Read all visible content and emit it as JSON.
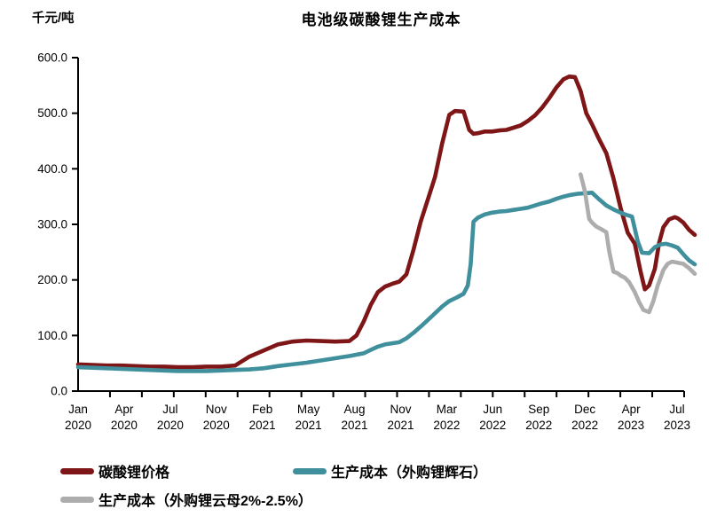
{
  "chart_data": {
    "type": "line",
    "title": "电池级碳酸锂生产成本",
    "ylabel": "千元/吨",
    "xlabel": "",
    "ylim": [
      0,
      600
    ],
    "ytick_step": 100,
    "ytick_labels": [
      "0.0",
      "100.0",
      "200.0",
      "300.0",
      "400.0",
      "500.0",
      "600.0"
    ],
    "grid": false,
    "legend_position": "bottom",
    "x_unit": "months since Jan 2020",
    "x_range_months": [
      0,
      43.2
    ],
    "xtick_labels": [
      {
        "month": "Jan",
        "year": "2020"
      },
      {
        "month": "Apr",
        "year": "2020"
      },
      {
        "month": "Jul",
        "year": "2020"
      },
      {
        "month": "Nov",
        "year": "2020"
      },
      {
        "month": "Feb",
        "year": "2021"
      },
      {
        "month": "May",
        "year": "2021"
      },
      {
        "month": "Aug",
        "year": "2021"
      },
      {
        "month": "Nov",
        "year": "2021"
      },
      {
        "month": "Mar",
        "year": "2022"
      },
      {
        "month": "Jun",
        "year": "2022"
      },
      {
        "month": "Sep",
        "year": "2022"
      },
      {
        "month": "Dec",
        "year": "2022"
      },
      {
        "month": "Apr",
        "year": "2023"
      },
      {
        "month": "Jul",
        "year": "2023"
      }
    ],
    "series": [
      {
        "name": "碳酸锂价格",
        "color": "#7E1517",
        "x": [
          0,
          1,
          2,
          3,
          4,
          5,
          6,
          7,
          8,
          9,
          10,
          11,
          12,
          13,
          14,
          15,
          16,
          17,
          18,
          19,
          19.5,
          20,
          20.5,
          21,
          21.5,
          22,
          22.5,
          23,
          23.5,
          24,
          24.5,
          25,
          25.5,
          26,
          26.4,
          27,
          27.4,
          27.7,
          28,
          28.5,
          29,
          29.5,
          30,
          30.5,
          31,
          31.5,
          32,
          32.5,
          33,
          33.5,
          34,
          34.4,
          34.8,
          35.2,
          35.6,
          36,
          36.5,
          37,
          37.5,
          38,
          38.5,
          39,
          39.4,
          39.7,
          40,
          40.4,
          40.7,
          41,
          41.4,
          41.8,
          42,
          42.4,
          42.8,
          43.2
        ],
        "values": [
          48,
          47,
          46,
          46,
          45,
          44,
          44,
          43,
          43,
          44,
          44,
          46,
          62,
          73,
          84,
          89,
          91,
          90,
          89,
          90,
          100,
          125,
          155,
          178,
          188,
          193,
          197,
          210,
          255,
          305,
          345,
          385,
          445,
          497,
          504,
          503,
          470,
          463,
          464,
          467,
          467,
          469,
          470,
          474,
          478,
          486,
          496,
          510,
          527,
          546,
          561,
          566,
          565,
          540,
          500,
          480,
          453,
          428,
          383,
          330,
          285,
          265,
          215,
          183,
          190,
          220,
          267,
          295,
          309,
          313,
          311,
          303,
          290,
          281
        ]
      },
      {
        "name": "生产成本（外购锂辉石）",
        "color": "#3F8F9C",
        "x": [
          0,
          1,
          2,
          3,
          4,
          5,
          6,
          7,
          8,
          9,
          10,
          11,
          12,
          13,
          14,
          15,
          16,
          17,
          18,
          19,
          20,
          20.5,
          21,
          21.5,
          22,
          22.5,
          23,
          23.5,
          24,
          24.5,
          25,
          25.5,
          26,
          26.5,
          27,
          27.3,
          27.5,
          27.7,
          28,
          28.5,
          29,
          29.5,
          30,
          30.5,
          31,
          31.5,
          32,
          32.5,
          33,
          33.5,
          34,
          34.5,
          35,
          35.5,
          36,
          36.5,
          37,
          37.5,
          38,
          38.4,
          38.8,
          39.2,
          39.5,
          40,
          40.4,
          40.8,
          41.2,
          41.6,
          42,
          42.4,
          42.8,
          43.2
        ],
        "values": [
          43,
          42,
          41,
          40,
          39,
          38,
          37,
          36,
          36,
          36,
          37,
          38,
          39,
          41,
          45,
          48,
          51,
          55,
          59,
          63,
          68,
          74,
          80,
          84,
          86,
          88,
          95,
          105,
          116,
          128,
          140,
          152,
          162,
          168,
          175,
          190,
          228,
          305,
          312,
          318,
          321,
          323,
          324,
          326,
          328,
          330,
          334,
          338,
          341,
          346,
          350,
          353,
          355,
          356,
          357,
          345,
          334,
          327,
          321,
          317,
          314,
          270,
          249,
          248,
          259,
          264,
          265,
          262,
          258,
          246,
          235,
          228
        ]
      },
      {
        "name": "生产成本（外购锂云母2%-2.5%）",
        "color": "#ADADAD",
        "x": [
          35.2,
          35.5,
          35.8,
          36,
          36.3,
          36.6,
          37,
          37.2,
          37.5,
          37.8,
          38,
          38.3,
          38.6,
          39,
          39.3,
          39.6,
          40,
          40.3,
          40.6,
          41,
          41.3,
          41.6,
          42,
          42.4,
          42.8,
          43.2
        ],
        "values": [
          390,
          360,
          310,
          303,
          296,
          292,
          286,
          252,
          215,
          212,
          208,
          204,
          196,
          178,
          160,
          146,
          142,
          162,
          190,
          218,
          229,
          233,
          231,
          229,
          221,
          211
        ]
      }
    ]
  }
}
